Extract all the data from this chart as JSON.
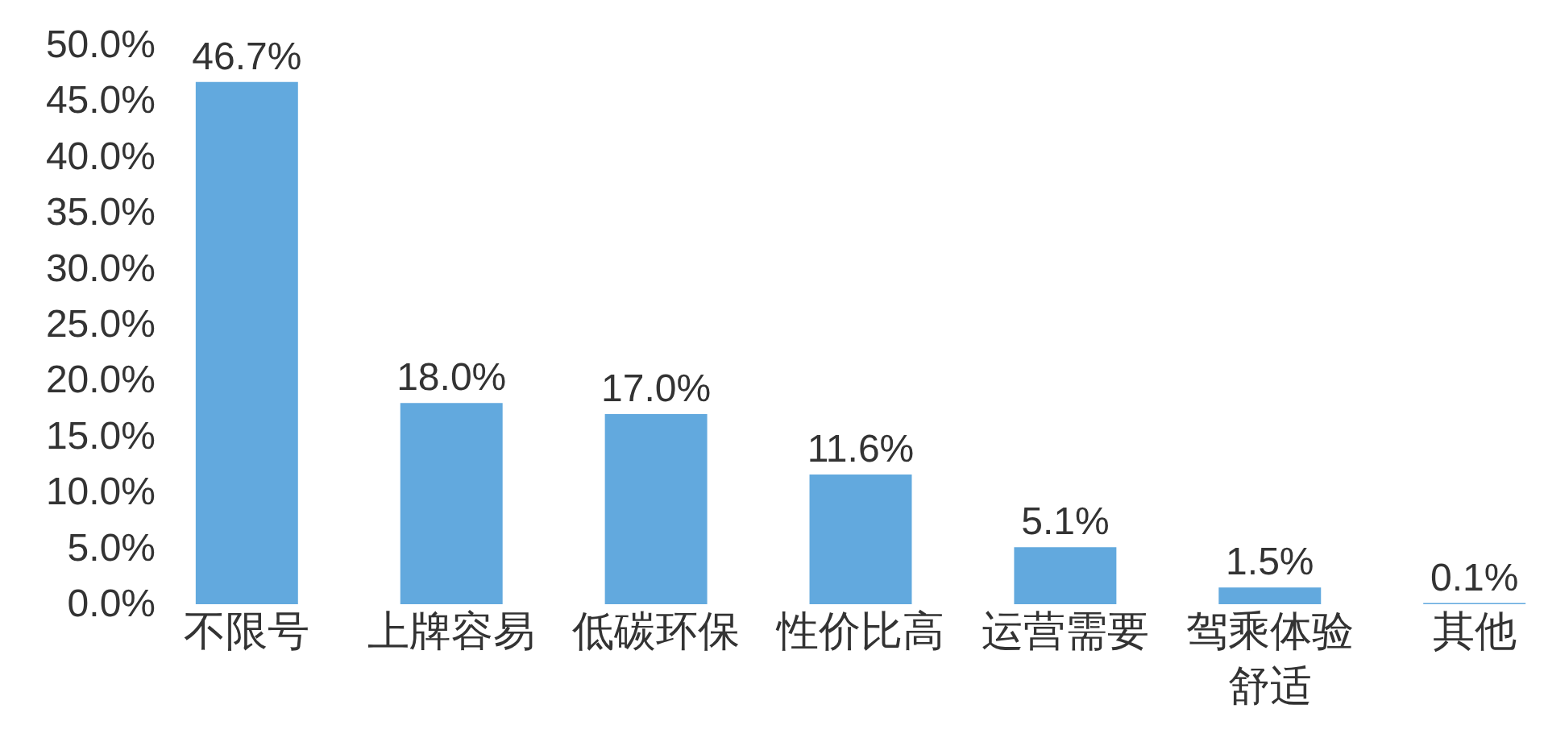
{
  "chart_data": {
    "type": "bar",
    "categories": [
      "不限号",
      "上牌容易",
      "低碳环保",
      "性价比高",
      "运营需要",
      "驾乘体验舒适",
      "其他"
    ],
    "values": [
      46.7,
      18.0,
      17.0,
      11.6,
      5.1,
      1.5,
      0.1
    ],
    "color": "#62a9de",
    "value_labels": [
      "46.7%",
      "18.0%",
      "17.0%",
      "11.6%",
      "5.1%",
      "1.5%",
      "0.1%"
    ],
    "ylim": [
      0,
      50
    ],
    "yticks": [
      {
        "value": 0,
        "label": "0.0%"
      },
      {
        "value": 5,
        "label": "5.0%"
      },
      {
        "value": 10,
        "label": "10.0%"
      },
      {
        "value": 15,
        "label": "15.0%"
      },
      {
        "value": 20,
        "label": "20.0%"
      },
      {
        "value": 25,
        "label": "25.0%"
      },
      {
        "value": 30,
        "label": "30.0%"
      },
      {
        "value": 35,
        "label": "35.0%"
      },
      {
        "value": 40,
        "label": "40.0%"
      },
      {
        "value": 45,
        "label": "45.0%"
      },
      {
        "value": 50,
        "label": "50.0%"
      }
    ],
    "grid": false
  }
}
